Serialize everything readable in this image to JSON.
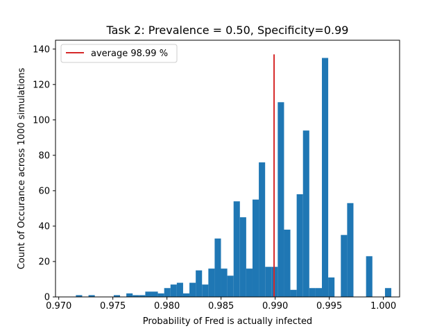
{
  "chart_data": {
    "type": "bar",
    "subtype": "histogram",
    "title": "Task 2: Prevalence = 0.50, Specificity=0.99",
    "xlabel": "Probability of Fred is actually infected",
    "ylabel": "Count of Occurance across 1000 simulations",
    "xlim": [
      0.9697,
      1.0015
    ],
    "ylim": [
      0,
      145
    ],
    "xticks": [
      {
        "value": 0.97,
        "label": "0.970"
      },
      {
        "value": 0.975,
        "label": "0.975"
      },
      {
        "value": 0.98,
        "label": "0.980"
      },
      {
        "value": 0.985,
        "label": "0.985"
      },
      {
        "value": 0.99,
        "label": "0.990"
      },
      {
        "value": 0.995,
        "label": "0.995"
      },
      {
        "value": 1.0,
        "label": "1.000"
      }
    ],
    "yticks": [
      {
        "value": 0,
        "label": "0"
      },
      {
        "value": 20,
        "label": "20"
      },
      {
        "value": 40,
        "label": "40"
      },
      {
        "value": 60,
        "label": "60"
      },
      {
        "value": 80,
        "label": "80"
      },
      {
        "value": 100,
        "label": "100"
      },
      {
        "value": 120,
        "label": "120"
      },
      {
        "value": 140,
        "label": "140"
      }
    ],
    "bin_start": 0.971,
    "bin_width": 0.000583,
    "bin_counts": [
      0,
      1,
      0,
      1,
      0,
      0,
      0,
      1,
      0,
      2,
      1,
      1,
      3,
      3,
      2,
      5,
      7,
      8,
      2,
      8,
      15,
      7,
      16,
      33,
      16,
      12,
      54,
      45,
      16,
      55,
      76,
      17,
      17,
      110,
      38,
      4,
      58,
      94,
      5,
      5,
      135,
      11,
      0,
      35,
      53,
      0,
      0,
      23,
      0,
      0,
      5
    ],
    "bar_color": "#1f77b4",
    "average_line": {
      "x": 0.9899,
      "y_min": 0,
      "y_max": 137,
      "color": "#d62728"
    },
    "legend": {
      "position": "top-left",
      "entries": [
        {
          "label": "average 98.99 %",
          "color": "#d62728",
          "marker": "line"
        }
      ]
    },
    "grid": false
  }
}
